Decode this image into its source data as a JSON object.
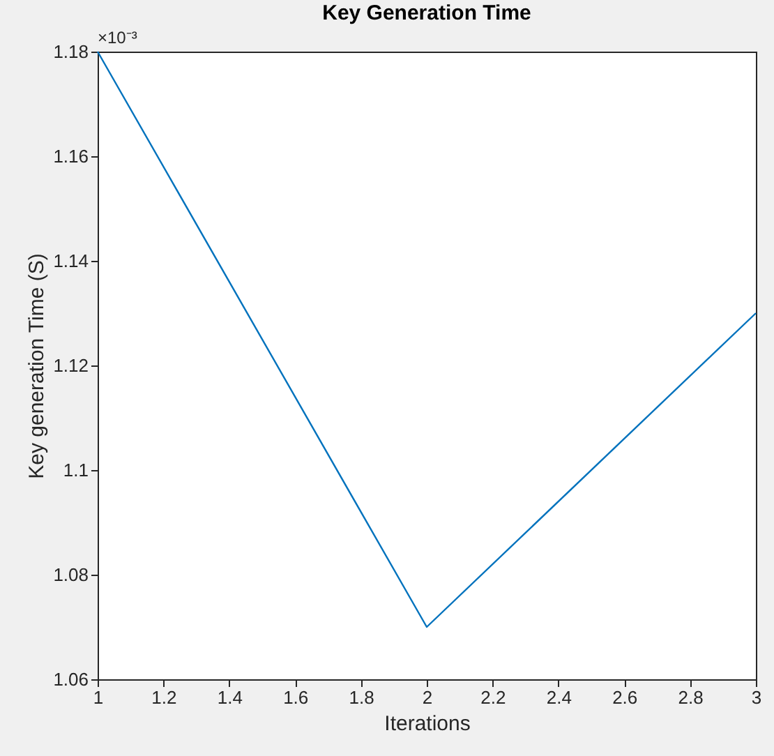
{
  "chart_data": {
    "type": "line",
    "title": "Key Generation Time",
    "xlabel": "Iterations",
    "ylabel": "Key generation Time (S)",
    "annotations": [
      "×10⁻³"
    ],
    "x": [
      1,
      2,
      3
    ],
    "series": [
      {
        "color": "#0072bd",
        "values": [
          1.18,
          1.07,
          1.13
        ]
      }
    ],
    "xlim": [
      1,
      3
    ],
    "xticks": [
      1,
      1.2,
      1.4,
      1.6,
      1.8,
      2,
      2.2,
      2.4,
      2.6,
      2.8,
      3
    ],
    "ylim": [
      1.06,
      1.18
    ],
    "yticks": [
      1.06,
      1.08,
      1.1,
      1.12,
      1.14,
      1.16,
      1.18
    ],
    "grid": false,
    "marker": "none",
    "line_style": "solid"
  }
}
